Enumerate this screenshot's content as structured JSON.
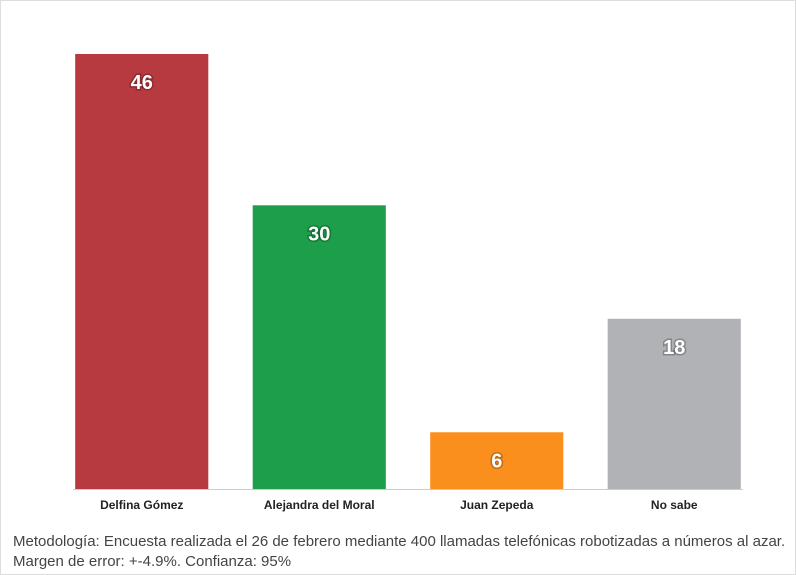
{
  "chart_data": {
    "type": "bar",
    "categories": [
      "Delfina Gómez",
      "Alejandra del Moral",
      "Juan Zepeda",
      "No sabe"
    ],
    "values": [
      46,
      30,
      6,
      18
    ],
    "colors": [
      "#b83a41",
      "#1d9e4a",
      "#fb8f1d",
      "#b1b2b5"
    ],
    "notes": [
      "Metodología: Encuesta realizada el 26 de febrero mediante 400 llamadas telefónicas robotizadas a números al azar.",
      "Margen de error: +-4.9%. Confianza: 95%"
    ]
  }
}
